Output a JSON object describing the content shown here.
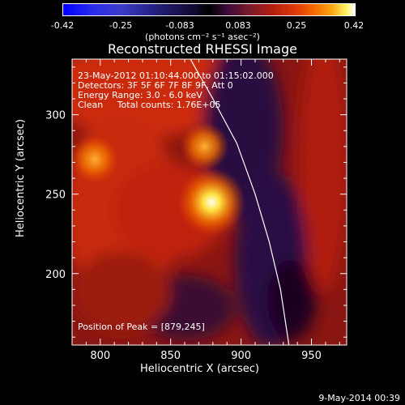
{
  "colorbar": {
    "ticks": [
      "-0.42",
      "-0.25",
      "-0.083",
      "0.083",
      "0.25",
      "0.42"
    ],
    "units": "(photons cm⁻² s⁻¹ asec⁻²)"
  },
  "chart_data": {
    "type": "heatmap",
    "title": "Reconstructed RHESSI Image",
    "xlabel": "Heliocentric X (arcsec)",
    "ylabel": "Heliocentric Y (arcsec)",
    "xlim": [
      780,
      975
    ],
    "ylim": [
      155,
      335
    ],
    "x_ticks": [
      "800",
      "850",
      "900",
      "950"
    ],
    "y_ticks": [
      "200",
      "250",
      "300"
    ],
    "colorbar_range": [
      -0.42,
      0.42
    ],
    "annotations": [
      "23-May-2012 01:10:44.000 to 01:15:02.000",
      "Detectors: 3F 5F 6F 7F 8F 9F, Att 0",
      "Energy Range: 3.0 - 6.0 keV",
      "Clean     Total counts: 1.76E+05"
    ],
    "peak_label": "Position of Peak = [879,245]",
    "peak": {
      "x": 879,
      "y": 245
    },
    "sources": [
      {
        "x": 879,
        "y": 245,
        "intensity": 0.42
      },
      {
        "x": 874,
        "y": 280,
        "intensity": 0.3
      },
      {
        "x": 796,
        "y": 272,
        "intensity": 0.28
      }
    ],
    "limb_curve": [
      [
        864,
        335
      ],
      [
        880,
        310
      ],
      [
        897,
        282
      ],
      [
        910,
        250
      ],
      [
        920,
        220
      ],
      [
        928,
        190
      ],
      [
        934,
        155
      ]
    ]
  },
  "footer": {
    "date": "9-May-2014 00:39"
  }
}
